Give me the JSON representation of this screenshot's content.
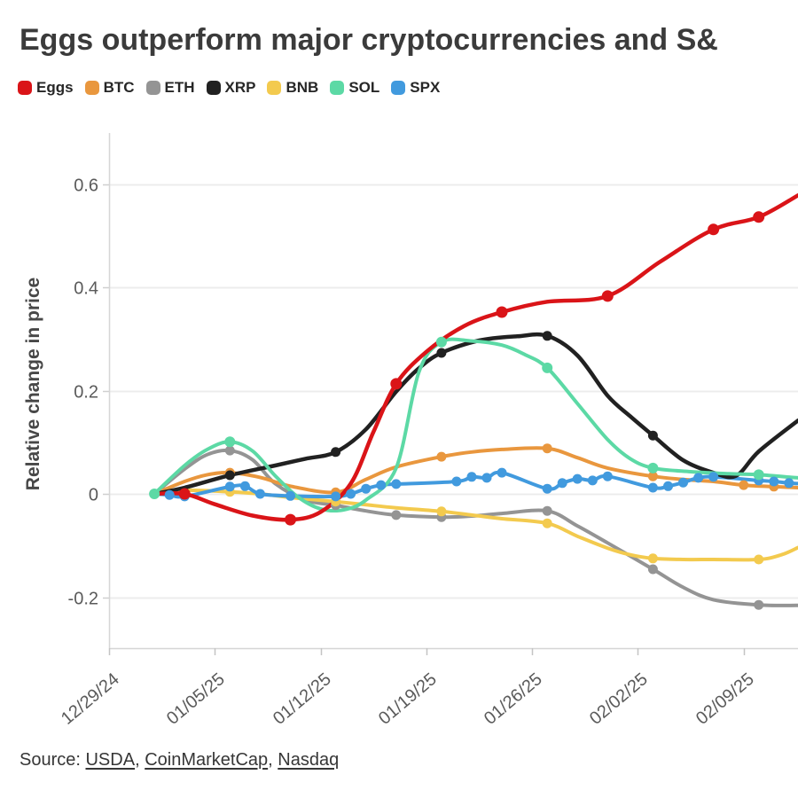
{
  "title": "Eggs outperform major cryptocurrencies and S&",
  "legend": [
    {
      "id": "eggs",
      "label": "Eggs",
      "color": "#da1418"
    },
    {
      "id": "btc",
      "label": "BTC",
      "color": "#e9973e"
    },
    {
      "id": "eth",
      "label": "ETH",
      "color": "#949494"
    },
    {
      "id": "xrp",
      "label": "XRP",
      "color": "#212121"
    },
    {
      "id": "bnb",
      "label": "BNB",
      "color": "#f3ca4e"
    },
    {
      "id": "sol",
      "label": "SOL",
      "color": "#5cd9a5"
    },
    {
      "id": "spx",
      "label": "SPX",
      "color": "#419ade"
    }
  ],
  "source": {
    "prefix": "Source: ",
    "links": [
      "USDA",
      "CoinMarketCap",
      "Nasdaq"
    ],
    "separator": ", "
  },
  "chart_data": {
    "type": "line",
    "title": "Eggs outperform major cryptocurrencies and S&",
    "xlabel": "",
    "ylabel": "Relative change in price",
    "grid": "horizontal",
    "legend_position": "top-left",
    "x_axis": {
      "unit": "days since 12/29/24",
      "tick_days": [
        0,
        7,
        14,
        21,
        28,
        35,
        42
      ],
      "tick_labels": [
        "12/29/24",
        "01/05/25",
        "01/12/25",
        "01/19/25",
        "01/26/25",
        "02/02/25",
        "02/09/25"
      ],
      "range_days": [
        0,
        45.6
      ]
    },
    "y_axis": {
      "tick_values": [
        0.6,
        0.4,
        0.2,
        0,
        -0.2
      ],
      "tick_labels": [
        "0.6",
        "0.4",
        "0.2",
        "0",
        "-0.2"
      ],
      "range": [
        -0.3,
        0.7
      ]
    },
    "series": [
      {
        "id": "eth",
        "name": "ETH",
        "color": "#949494",
        "line_width": 4,
        "marker_radius": 5.5,
        "points": [
          [
            3,
            0,
            0
          ],
          [
            5,
            0.048,
            0
          ],
          [
            6.5,
            0.076,
            0
          ],
          [
            8,
            0.084,
            1
          ],
          [
            9.5,
            0.066,
            0
          ],
          [
            11,
            0.02,
            0
          ],
          [
            13,
            -0.012,
            0
          ],
          [
            15,
            -0.022,
            1
          ],
          [
            17,
            -0.033,
            0
          ],
          [
            19,
            -0.041,
            1
          ],
          [
            22,
            -0.045,
            1
          ],
          [
            24,
            -0.043,
            0
          ],
          [
            26,
            -0.038,
            0
          ],
          [
            29,
            -0.033,
            1
          ],
          [
            31,
            -0.062,
            0
          ],
          [
            33,
            -0.095,
            0
          ],
          [
            36,
            -0.146,
            1
          ],
          [
            38,
            -0.181,
            0
          ],
          [
            40,
            -0.205,
            0
          ],
          [
            43,
            -0.215,
            1
          ],
          [
            45.6,
            -0.216,
            0
          ]
        ]
      },
      {
        "id": "bnb",
        "name": "BNB",
        "color": "#f3ca4e",
        "line_width": 4,
        "marker_radius": 5.5,
        "points": [
          [
            3,
            0,
            0
          ],
          [
            5,
            0.007,
            0
          ],
          [
            8,
            0.004,
            1
          ],
          [
            10,
            0,
            0
          ],
          [
            12,
            -0.007,
            0
          ],
          [
            15,
            -0.015,
            1
          ],
          [
            17,
            -0.021,
            0
          ],
          [
            19,
            -0.027,
            0
          ],
          [
            22,
            -0.034,
            1
          ],
          [
            24,
            -0.041,
            0
          ],
          [
            26,
            -0.048,
            0
          ],
          [
            29,
            -0.057,
            1
          ],
          [
            31,
            -0.082,
            0
          ],
          [
            33,
            -0.105,
            0
          ],
          [
            34.5,
            -0.118,
            0
          ],
          [
            36,
            -0.125,
            1
          ],
          [
            38,
            -0.127,
            0
          ],
          [
            40,
            -0.127,
            0
          ],
          [
            43,
            -0.127,
            1
          ],
          [
            44.5,
            -0.118,
            0
          ],
          [
            45.6,
            -0.104,
            0
          ]
        ]
      },
      {
        "id": "btc",
        "name": "BTC",
        "color": "#e9973e",
        "line_width": 4,
        "marker_radius": 5.5,
        "points": [
          [
            3,
            0,
            0
          ],
          [
            5,
            0.024,
            0
          ],
          [
            6.5,
            0.037,
            0
          ],
          [
            8,
            0.041,
            1
          ],
          [
            10,
            0.032,
            0
          ],
          [
            12,
            0.015,
            0
          ],
          [
            15,
            0.003,
            1
          ],
          [
            17,
            0.028,
            0
          ],
          [
            19,
            0.052,
            0
          ],
          [
            22,
            0.072,
            1
          ],
          [
            24,
            0.081,
            0
          ],
          [
            26,
            0.086,
            0
          ],
          [
            29,
            0.088,
            1
          ],
          [
            31,
            0.07,
            0
          ],
          [
            33,
            0.05,
            0
          ],
          [
            36,
            0.034,
            1
          ],
          [
            38,
            0.028,
            0
          ],
          [
            40,
            0.024,
            0
          ],
          [
            42,
            0.017,
            1
          ],
          [
            44,
            0.014,
            1
          ],
          [
            45.6,
            0.012,
            0
          ]
        ]
      },
      {
        "id": "spx",
        "name": "SPX",
        "color": "#419ade",
        "line_width": 4,
        "marker_radius": 5.5,
        "points": [
          [
            3,
            0,
            0
          ],
          [
            4,
            -0.002,
            1
          ],
          [
            5,
            -0.005,
            1
          ],
          [
            8,
            0.014,
            1
          ],
          [
            9,
            0.015,
            1
          ],
          [
            10,
            0,
            1
          ],
          [
            12,
            -0.004,
            1
          ],
          [
            15,
            -0.005,
            1
          ],
          [
            16,
            0,
            1
          ],
          [
            17,
            0.01,
            1
          ],
          [
            18,
            0.017,
            1
          ],
          [
            19,
            0.019,
            1
          ],
          [
            23,
            0.024,
            1
          ],
          [
            24,
            0.033,
            1
          ],
          [
            25,
            0.031,
            1
          ],
          [
            26,
            0.041,
            1
          ],
          [
            29,
            0.01,
            1
          ],
          [
            30,
            0.021,
            1
          ],
          [
            31,
            0.029,
            1
          ],
          [
            32,
            0.026,
            1
          ],
          [
            33,
            0.034,
            1
          ],
          [
            36,
            0.012,
            1
          ],
          [
            37,
            0.015,
            1
          ],
          [
            38,
            0.022,
            1
          ],
          [
            39,
            0.031,
            1
          ],
          [
            40,
            0.033,
            1
          ],
          [
            43,
            0.026,
            1
          ],
          [
            44,
            0.024,
            1
          ],
          [
            45,
            0.021,
            1
          ],
          [
            45.6,
            0.02,
            0
          ]
        ]
      },
      {
        "id": "xrp",
        "name": "XRP",
        "color": "#212121",
        "line_width": 4.5,
        "marker_radius": 5.5,
        "points": [
          [
            3,
            0,
            0
          ],
          [
            5,
            0.012,
            0
          ],
          [
            8,
            0.036,
            1
          ],
          [
            11,
            0.055,
            0
          ],
          [
            13,
            0.068,
            0
          ],
          [
            15,
            0.081,
            1
          ],
          [
            17,
            0.125,
            0
          ],
          [
            19,
            0.198,
            0
          ],
          [
            20.5,
            0.243,
            0
          ],
          [
            22,
            0.273,
            1
          ],
          [
            24.5,
            0.297,
            0
          ],
          [
            27,
            0.305,
            0
          ],
          [
            29,
            0.306,
            1
          ],
          [
            31,
            0.268,
            0
          ],
          [
            33,
            0.19,
            0
          ],
          [
            34.5,
            0.15,
            0
          ],
          [
            36,
            0.113,
            1
          ],
          [
            38,
            0.065,
            0
          ],
          [
            40,
            0.041,
            0
          ],
          [
            41.5,
            0.035,
            0
          ],
          [
            43,
            0.082,
            0
          ],
          [
            45.6,
            0.142,
            0
          ]
        ]
      },
      {
        "id": "sol",
        "name": "SOL",
        "color": "#5cd9a5",
        "line_width": 4,
        "marker_radius": 6,
        "points": [
          [
            3,
            0,
            1
          ],
          [
            5,
            0.055,
            0
          ],
          [
            6.5,
            0.086,
            0
          ],
          [
            8,
            0.101,
            1
          ],
          [
            9.5,
            0.083,
            0
          ],
          [
            11,
            0.035,
            0
          ],
          [
            12.5,
            -0.006,
            0
          ],
          [
            14,
            -0.029,
            0
          ],
          [
            15.5,
            -0.031,
            0
          ],
          [
            17,
            -0.012,
            0
          ],
          [
            19,
            0.05,
            0
          ],
          [
            20.5,
            0.235,
            0
          ],
          [
            22,
            0.294,
            1
          ],
          [
            24,
            0.296,
            0
          ],
          [
            26,
            0.288,
            0
          ],
          [
            27.5,
            0.27,
            0
          ],
          [
            29,
            0.244,
            1
          ],
          [
            31,
            0.175,
            0
          ],
          [
            33,
            0.105,
            0
          ],
          [
            34.5,
            0.068,
            0
          ],
          [
            36,
            0.05,
            1
          ],
          [
            38.5,
            0.043,
            0
          ],
          [
            41,
            0.039,
            0
          ],
          [
            43,
            0.037,
            1
          ],
          [
            45.6,
            0.031,
            0
          ]
        ]
      },
      {
        "id": "eggs",
        "name": "Eggs",
        "color": "#da1418",
        "line_width": 4.5,
        "marker_radius": 6.5,
        "points": [
          [
            3,
            0,
            0
          ],
          [
            5,
            0,
            1
          ],
          [
            7,
            -0.02,
            0
          ],
          [
            9.5,
            -0.042,
            0
          ],
          [
            12,
            -0.05,
            1
          ],
          [
            14,
            -0.035,
            0
          ],
          [
            16,
            0.02,
            0
          ],
          [
            17.5,
            0.12,
            0
          ],
          [
            19,
            0.213,
            1
          ],
          [
            21,
            0.275,
            0
          ],
          [
            23.5,
            0.325,
            0
          ],
          [
            26,
            0.352,
            1
          ],
          [
            29,
            0.372,
            0
          ],
          [
            33,
            0.383,
            1
          ],
          [
            36.5,
            0.45,
            0
          ],
          [
            40,
            0.512,
            1
          ],
          [
            43,
            0.536,
            1
          ],
          [
            45.6,
            0.578,
            0
          ]
        ]
      }
    ]
  }
}
